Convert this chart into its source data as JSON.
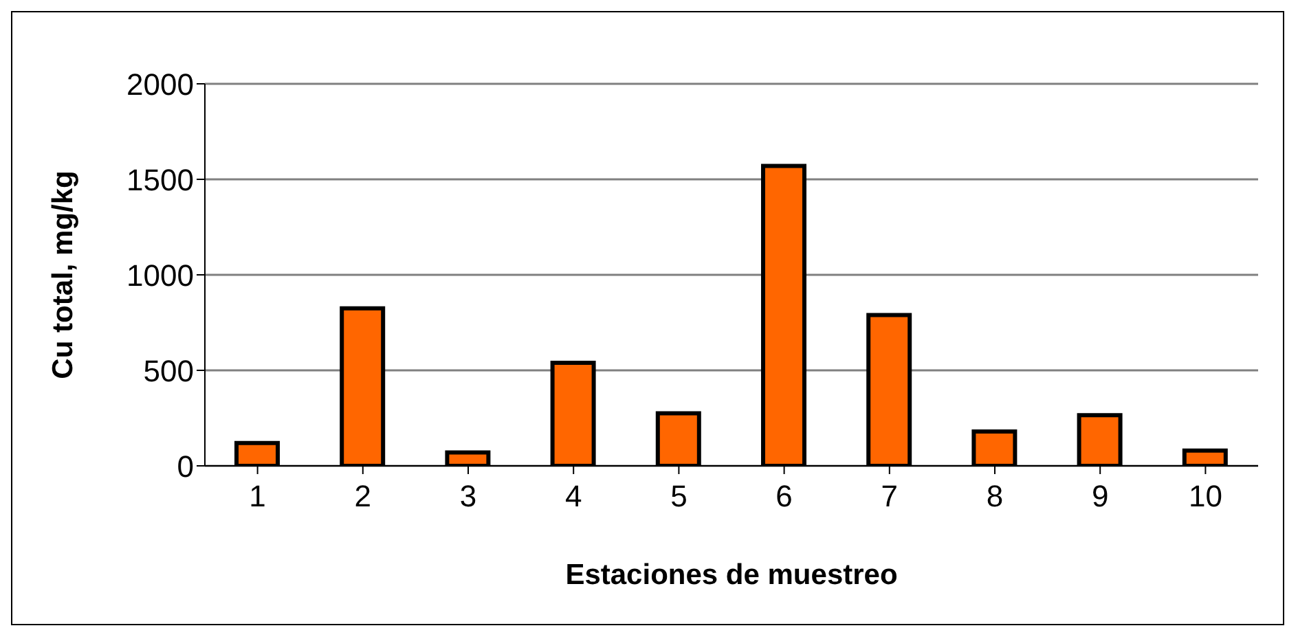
{
  "chart_data": {
    "type": "bar",
    "xlabel": "Estaciones de muestreo",
    "ylabel": "Cu total, mg/kg",
    "categories": [
      "1",
      "2",
      "3",
      "4",
      "5",
      "6",
      "7",
      "8",
      "9",
      "10"
    ],
    "values": [
      120,
      825,
      70,
      540,
      275,
      1570,
      790,
      180,
      265,
      80
    ],
    "color": "#ff6600",
    "ylim": [
      0,
      2000
    ],
    "yticks": [
      0,
      500,
      1000,
      1500,
      2000
    ],
    "grid": "y"
  }
}
